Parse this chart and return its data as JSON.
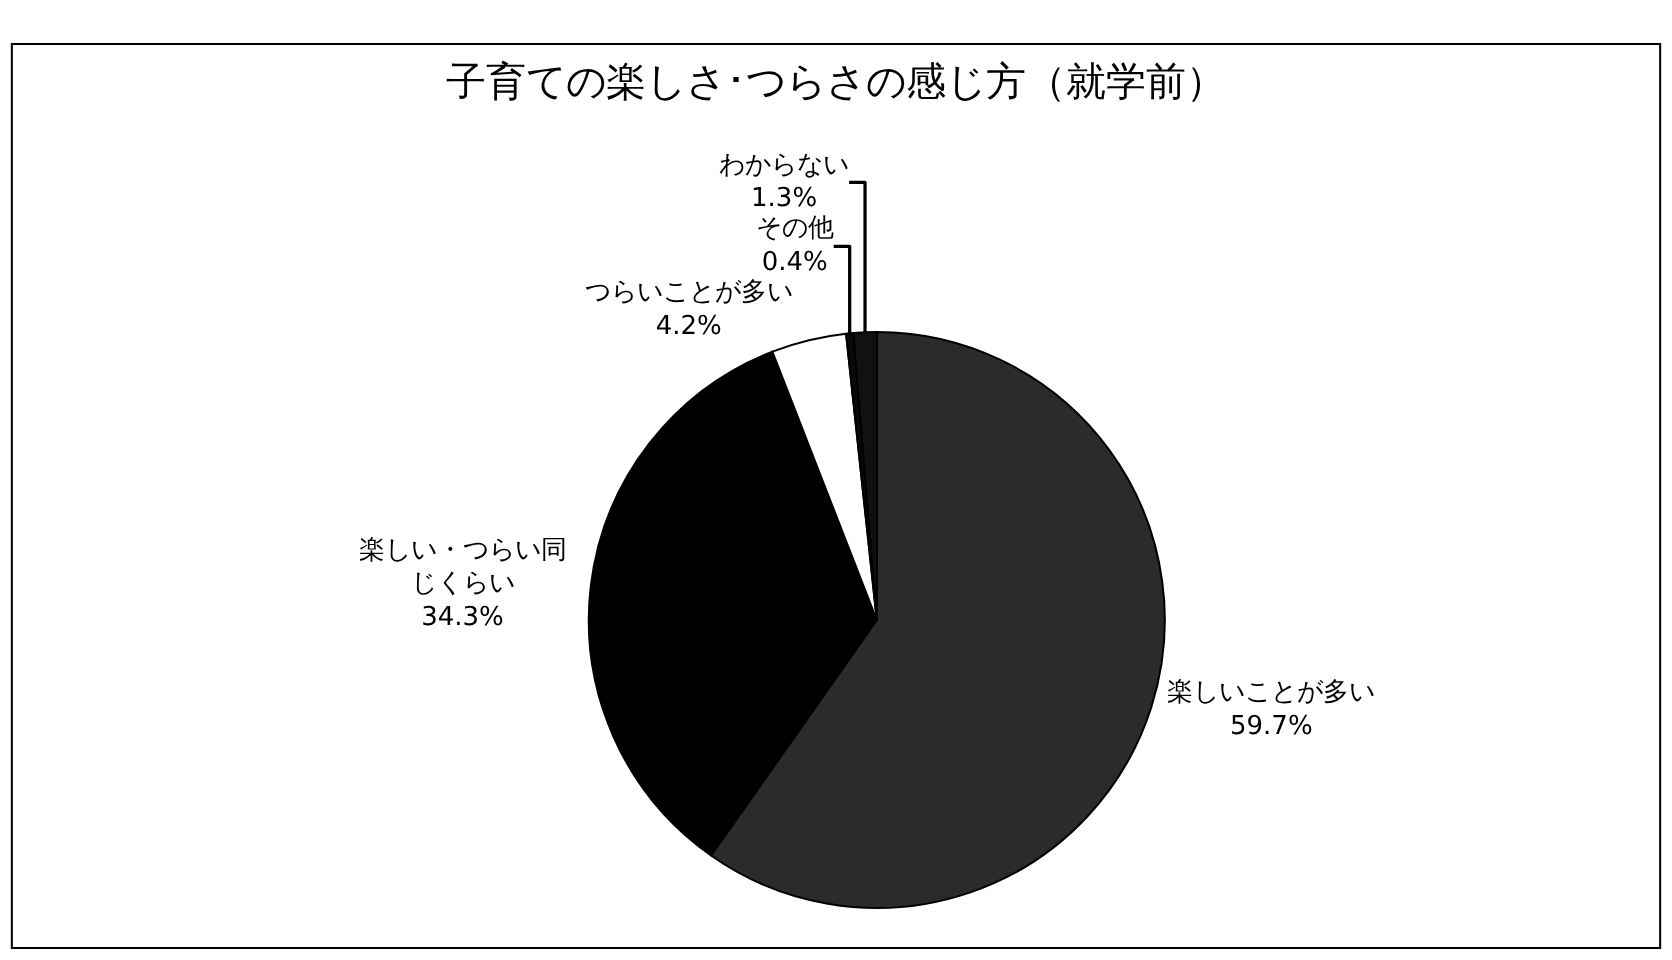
{
  "chart_data": {
    "type": "pie",
    "title": "子育ての楽しさ･つらさの感じ方（就学前）",
    "categories": [
      "楽しいことが多い",
      "楽しい・つらい同じくらい",
      "つらいことが多い",
      "その他",
      "わからない"
    ],
    "values": [
      59.7,
      34.3,
      4.2,
      0.4,
      1.3
    ],
    "colors": [
      "#2b2b2b",
      "#000000",
      "#ffffff",
      "#0a0a0a",
      "#111111"
    ],
    "value_labels": [
      "59.7%",
      "34.3%",
      "4.2%",
      "0.4%",
      "1.3%"
    ],
    "legend": false
  }
}
